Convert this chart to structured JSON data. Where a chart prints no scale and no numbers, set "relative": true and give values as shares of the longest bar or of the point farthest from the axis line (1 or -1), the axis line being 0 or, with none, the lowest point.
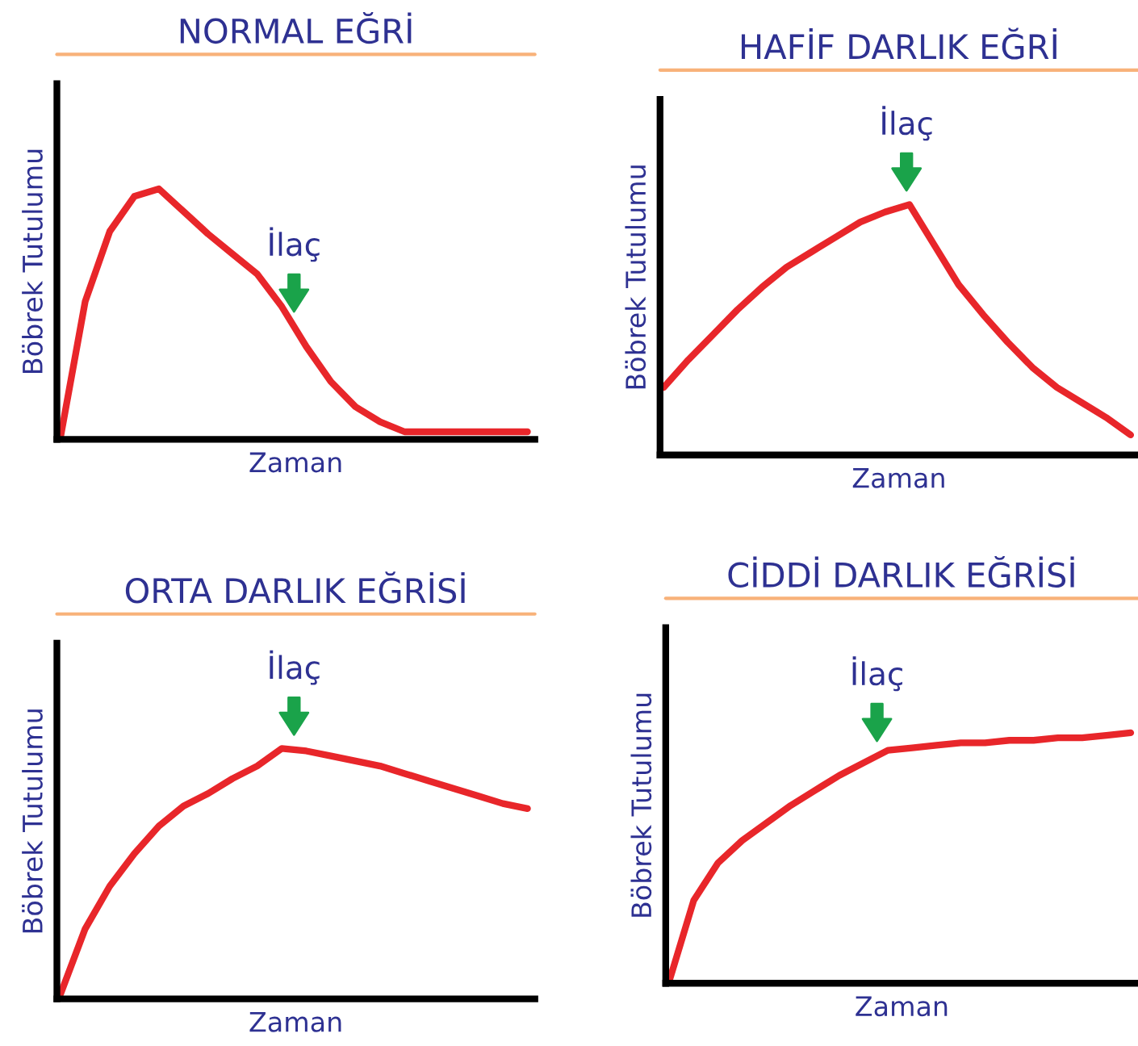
{
  "chart_data": [
    {
      "type": "line",
      "title": "NORMAL EĞRİ",
      "xlabel": "Zaman",
      "ylabel": "Böbrek Tutulumu",
      "relative": true,
      "annotations": [
        "İlaç"
      ],
      "categories": [
        null,
        null,
        null,
        null,
        null,
        null,
        null,
        null,
        null,
        null,
        null,
        null,
        null,
        null,
        null,
        null,
        null,
        null,
        null,
        null
      ],
      "series": [
        {
          "color": "#e8262a",
          "values": [
            0.01,
            0.55,
            0.83,
            0.97,
            1.0,
            0.91,
            0.82,
            0.74,
            0.66,
            0.53,
            0.37,
            0.23,
            0.13,
            0.07,
            0.03,
            0.03,
            0.03,
            0.03,
            0.03,
            0.03
          ]
        }
      ]
    },
    {
      "type": "line",
      "title": "HAFİF DARLIK EĞRİ",
      "xlabel": "Zaman",
      "ylabel": "Böbrek Tutulumu",
      "relative": true,
      "annotations": [
        "İlaç"
      ],
      "categories": [
        null,
        null,
        null,
        null,
        null,
        null,
        null,
        null,
        null,
        null,
        null,
        null,
        null,
        null,
        null,
        null,
        null,
        null,
        null,
        null
      ],
      "series": [
        {
          "color": "#e8262a",
          "values": [
            0.27,
            0.38,
            0.48,
            0.58,
            0.67,
            0.75,
            0.81,
            0.87,
            0.93,
            0.97,
            1.0,
            0.84,
            0.68,
            0.56,
            0.45,
            0.35,
            0.27,
            0.21,
            0.15,
            0.08
          ]
        }
      ]
    },
    {
      "type": "line",
      "title": "ORTA DARLIK EĞRİSİ",
      "xlabel": "Zaman",
      "ylabel": "Böbrek Tutulumu",
      "relative": true,
      "annotations": [
        "İlaç"
      ],
      "categories": [
        null,
        null,
        null,
        null,
        null,
        null,
        null,
        null,
        null,
        null,
        null,
        null,
        null,
        null,
        null,
        null,
        null,
        null,
        null,
        null
      ],
      "series": [
        {
          "color": "#e8262a",
          "values": [
            0.02,
            0.28,
            0.45,
            0.58,
            0.69,
            0.77,
            0.82,
            0.88,
            0.93,
            1.0,
            0.99,
            0.97,
            0.95,
            0.93,
            0.9,
            0.87,
            0.84,
            0.81,
            0.78,
            0.76
          ]
        }
      ]
    },
    {
      "type": "line",
      "title": "CİDDİ DARLIK EĞRİSİ",
      "xlabel": "Zaman",
      "ylabel": "Böbrek Tutulumu",
      "relative": true,
      "annotations": [
        "İlaç"
      ],
      "categories": [
        null,
        null,
        null,
        null,
        null,
        null,
        null,
        null,
        null,
        null,
        null,
        null,
        null,
        null,
        null,
        null,
        null,
        null,
        null,
        null
      ],
      "series": [
        {
          "color": "#e8262a",
          "values": [
            0.01,
            0.33,
            0.48,
            0.57,
            0.64,
            0.71,
            0.77,
            0.83,
            0.88,
            0.93,
            0.94,
            0.95,
            0.96,
            0.96,
            0.97,
            0.97,
            0.98,
            0.98,
            0.99,
            1.0
          ]
        }
      ]
    }
  ]
}
